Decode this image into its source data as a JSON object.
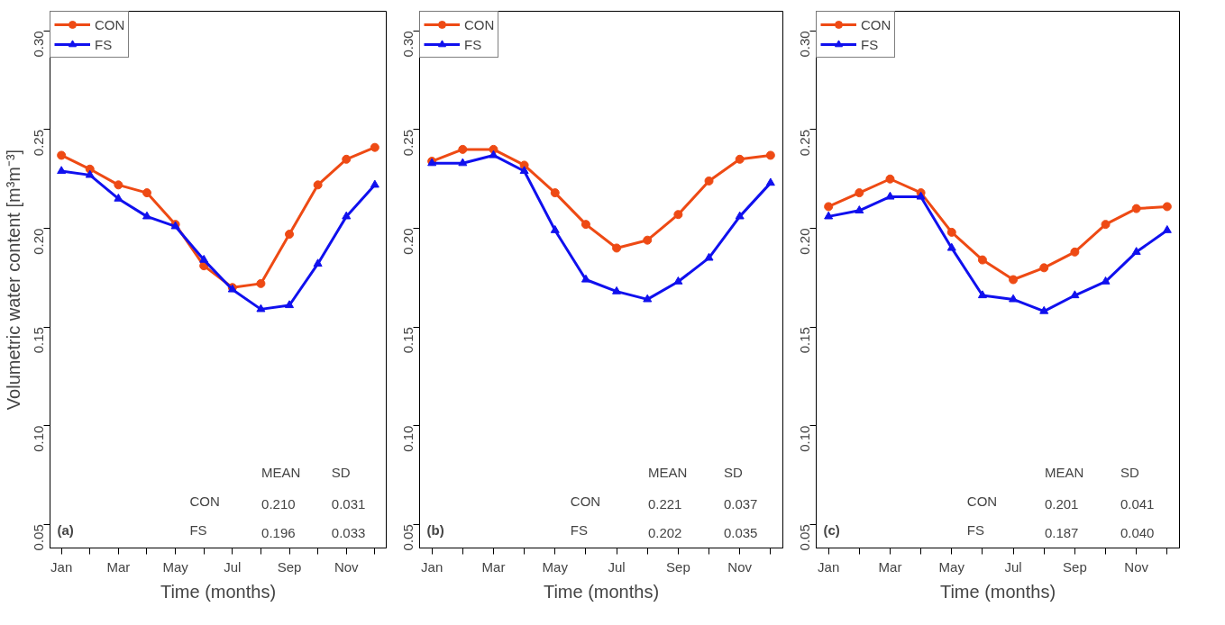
{
  "chart_data": [
    {
      "type": "line",
      "xlabel": "Time (months)",
      "ylabel": "Volumetric water content [m³m⁻³]",
      "categories": [
        "Jan",
        null,
        "Mar",
        null,
        "May",
        null,
        "Jul",
        null,
        "Sep",
        null,
        "Nov",
        null
      ],
      "ylim": [
        0.038,
        0.31
      ],
      "yticks": [
        0.05,
        {
          "value": 0.1,
          "label": "0.10"
        },
        0.15,
        {
          "value": 0.2,
          "label": "0.20"
        },
        0.25,
        {
          "value": 0.3,
          "label": "0.30"
        }
      ],
      "legend": "top left",
      "grid": false,
      "line_style": "solid",
      "series": [
        {
          "name": "CON",
          "color": "#ee4a14",
          "marker": "circle",
          "values": [
            0.237,
            0.23,
            0.222,
            0.218,
            0.202,
            0.181,
            0.17,
            0.172,
            0.197,
            0.222,
            0.235,
            0.241
          ]
        },
        {
          "name": "FS",
          "color": "#1010ee",
          "marker": "triangle",
          "values": [
            0.229,
            0.227,
            0.215,
            0.206,
            0.201,
            0.184,
            0.169,
            0.159,
            0.161,
            0.182,
            0.206,
            0.222
          ]
        }
      ],
      "annotations": [
        "(a)",
        "MEAN",
        "SD",
        "CON",
        "0.210",
        "0.031",
        "FS",
        "0.196",
        "0.033"
      ]
    },
    {
      "type": "line",
      "xlabel": "Time (months)",
      "categories": [
        "Jan",
        null,
        "Mar",
        null,
        "May",
        null,
        "Jul",
        null,
        "Sep",
        null,
        "Nov",
        null
      ],
      "ylim": [
        0.038,
        0.31
      ],
      "yticks": [
        0.05,
        {
          "value": 0.1,
          "label": "0.10"
        },
        0.15,
        {
          "value": 0.2,
          "label": "0.20"
        },
        0.25,
        {
          "value": 0.3,
          "label": "0.30"
        }
      ],
      "legend": "top left",
      "grid": false,
      "line_style": "solid",
      "series": [
        {
          "name": "CON",
          "color": "#ee4a14",
          "marker": "circle",
          "values": [
            0.234,
            0.24,
            0.24,
            0.232,
            0.218,
            0.202,
            0.19,
            0.194,
            0.207,
            0.224,
            0.235,
            0.237
          ]
        },
        {
          "name": "FS",
          "color": "#1010ee",
          "marker": "triangle",
          "values": [
            0.233,
            0.233,
            0.237,
            0.229,
            0.199,
            0.174,
            0.168,
            0.164,
            0.173,
            0.185,
            0.206,
            0.223
          ]
        }
      ],
      "annotations": [
        "(b)",
        "MEAN",
        "SD",
        "CON",
        "0.221",
        "0.037",
        "FS",
        "0.202",
        "0.035"
      ]
    },
    {
      "type": "line",
      "xlabel": "Time (months)",
      "categories": [
        "Jan",
        null,
        "Mar",
        null,
        "May",
        null,
        "Jul",
        null,
        "Sep",
        null,
        "Nov",
        null
      ],
      "ylim": [
        0.038,
        0.31
      ],
      "yticks": [
        0.05,
        {
          "value": 0.1,
          "label": "0.10"
        },
        0.15,
        {
          "value": 0.2,
          "label": "0.20"
        },
        0.25,
        {
          "value": 0.3,
          "label": "0.30"
        }
      ],
      "legend": "top left",
      "grid": false,
      "line_style": "solid",
      "series": [
        {
          "name": "CON",
          "color": "#ee4a14",
          "marker": "circle",
          "values": [
            0.211,
            0.218,
            0.225,
            0.218,
            0.198,
            0.184,
            0.174,
            0.18,
            0.188,
            0.202,
            0.21,
            0.211
          ]
        },
        {
          "name": "FS",
          "color": "#1010ee",
          "marker": "triangle",
          "values": [
            0.206,
            0.209,
            0.216,
            0.216,
            0.19,
            0.166,
            0.164,
            0.158,
            0.166,
            0.173,
            0.188,
            0.199
          ]
        }
      ],
      "annotations": [
        "(c)",
        "MEAN",
        "SD",
        "CON",
        "0.201",
        "0.041",
        "FS",
        "0.187",
        "0.040"
      ]
    }
  ]
}
